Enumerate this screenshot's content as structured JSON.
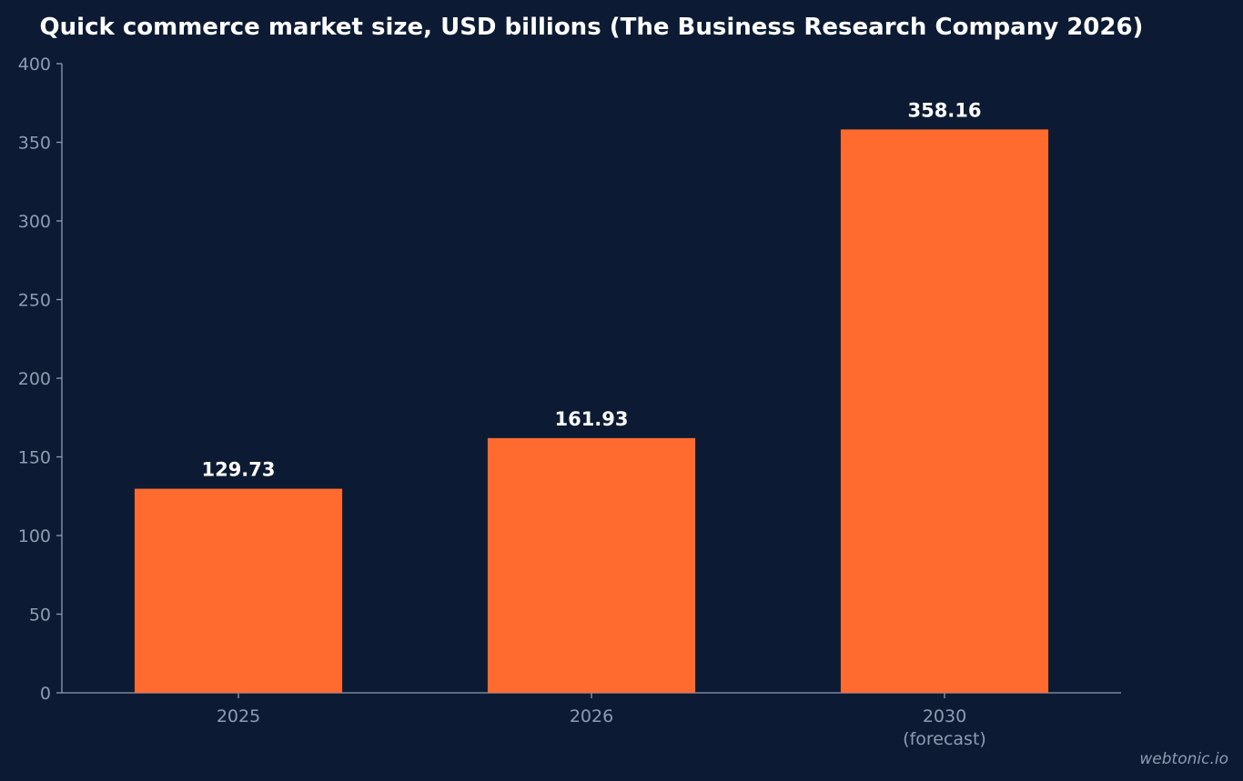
{
  "chart_data": {
    "type": "bar",
    "title": "Quick commerce market size, USD billions (The Business Research Company 2026)",
    "categories": [
      [
        "2025"
      ],
      [
        "2026"
      ],
      [
        "2030",
        "(forecast)"
      ]
    ],
    "values": [
      129.73,
      161.93,
      358.16
    ],
    "value_labels": [
      "129.73",
      "161.93",
      "358.16"
    ],
    "ylim": [
      0,
      400
    ],
    "yticks": [
      0,
      50,
      100,
      150,
      200,
      250,
      300,
      350,
      400
    ],
    "grid": false,
    "legend": "none",
    "colors": {
      "background": "#0c1b33",
      "bar": "#ff6b2f",
      "axis": "#8f9bb3",
      "tick_text": "#8f9bb3",
      "title": "#ffffff",
      "value_label": "#ffffff"
    }
  },
  "watermark": "webtonic.io"
}
